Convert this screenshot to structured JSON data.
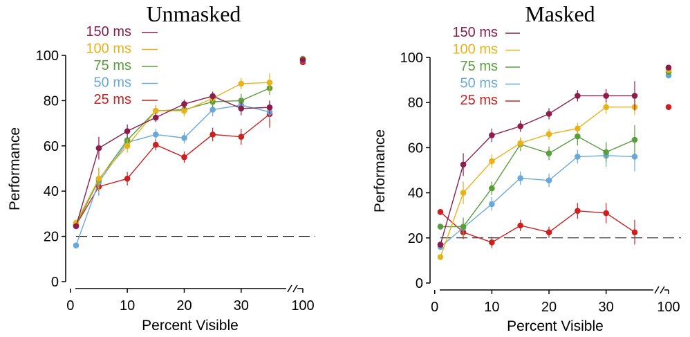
{
  "chart_data": [
    {
      "type": "line",
      "title": "Unmasked",
      "xlabel": "Percent Visible",
      "ylabel": "Performance",
      "x_ticks": [
        "0",
        "10",
        "20",
        "30",
        "100"
      ],
      "y_ticks": [
        "0",
        "20",
        "40",
        "60",
        "80",
        "100"
      ],
      "ylim": [
        0,
        100
      ],
      "chance_line": 20,
      "legend_placement": "top-left",
      "x": [
        1,
        5,
        10,
        15,
        20,
        25,
        30,
        35
      ],
      "series": [
        {
          "name": "150 ms",
          "color": "#8B1D4D",
          "values": [
            24.5,
            59,
            66.5,
            72.5,
            78.5,
            82,
            76.5,
            77
          ],
          "errors": [
            1,
            5,
            3,
            2,
            2,
            2,
            3,
            3
          ],
          "value_100": 98
        },
        {
          "name": "100 ms",
          "color": "#E8B21A",
          "values": [
            26,
            45.5,
            60,
            75.5,
            75.5,
            81,
            87.5,
            88
          ],
          "errors": [
            1,
            5,
            3,
            2.5,
            2.5,
            2,
            2.5,
            4
          ],
          "value_100": 98.2
        },
        {
          "name": "75 ms",
          "color": "#5A9E3C",
          "values": [
            25,
            45,
            62.5,
            75.5,
            76,
            79.5,
            80,
            85.5
          ],
          "errors": [
            1,
            5,
            3,
            2.5,
            2.5,
            2.5,
            3,
            3
          ],
          "value_100": 98.5
        },
        {
          "name": "50 ms",
          "color": "#6AA8DA",
          "values": [
            16,
            44,
            61.5,
            65,
            63.5,
            76,
            78,
            75
          ],
          "errors": [
            1,
            6,
            3,
            2.5,
            2.5,
            3,
            3,
            3
          ],
          "value_100": 97.8
        },
        {
          "name": "25 ms",
          "color": "#CC2020",
          "values": [
            25,
            42,
            45.5,
            60.5,
            55,
            65,
            64,
            74
          ],
          "errors": [
            1,
            4,
            3,
            2.5,
            2.5,
            3,
            3.5,
            6
          ],
          "value_100": 97
        }
      ]
    },
    {
      "type": "line",
      "title": "Masked",
      "xlabel": "Percent Visible",
      "ylabel": "Performance",
      "x_ticks": [
        "0",
        "10",
        "20",
        "30",
        "100"
      ],
      "y_ticks": [
        "0",
        "20",
        "40",
        "60",
        "80",
        "100"
      ],
      "ylim": [
        0,
        100
      ],
      "chance_line": 20,
      "legend_placement": "top-left",
      "x": [
        1,
        5,
        10,
        15,
        20,
        25,
        30,
        35
      ],
      "series": [
        {
          "name": "150 ms",
          "color": "#8B1D4D",
          "values": [
            17,
            52.5,
            65.5,
            69.5,
            75,
            83,
            83,
            83
          ],
          "errors": [
            1,
            5,
            3,
            2.5,
            2.5,
            2.5,
            3,
            6.5
          ],
          "value_100": 95.5
        },
        {
          "name": "100 ms",
          "color": "#E8B21A",
          "values": [
            11.5,
            40,
            54,
            62,
            66,
            68.5,
            78,
            78
          ],
          "errors": [
            1,
            5,
            3,
            2.5,
            2.5,
            2.5,
            3,
            3.5
          ],
          "value_100": 94.5
        },
        {
          "name": "75 ms",
          "color": "#5A9E3C",
          "values": [
            25,
            25,
            42,
            61.5,
            57.5,
            65,
            58,
            63.5
          ],
          "errors": [
            1,
            4,
            3,
            3,
            3,
            4,
            4.5,
            6.5
          ],
          "value_100": 93.5
        },
        {
          "name": "50 ms",
          "color": "#6AA8DA",
          "values": [
            16,
            24.5,
            35,
            46.5,
            45.5,
            56,
            56.5,
            56
          ],
          "errors": [
            1,
            3,
            3,
            3,
            3,
            3,
            5,
            6.5
          ],
          "value_100": 92
        },
        {
          "name": "25 ms",
          "color": "#CC2020",
          "values": [
            31.5,
            22.5,
            18,
            25.5,
            22.5,
            32,
            31,
            22.5
          ],
          "errors": [
            1,
            3,
            2.5,
            2.5,
            2.5,
            3.5,
            4.5,
            5.5
          ],
          "value_100": 78
        }
      ]
    }
  ]
}
